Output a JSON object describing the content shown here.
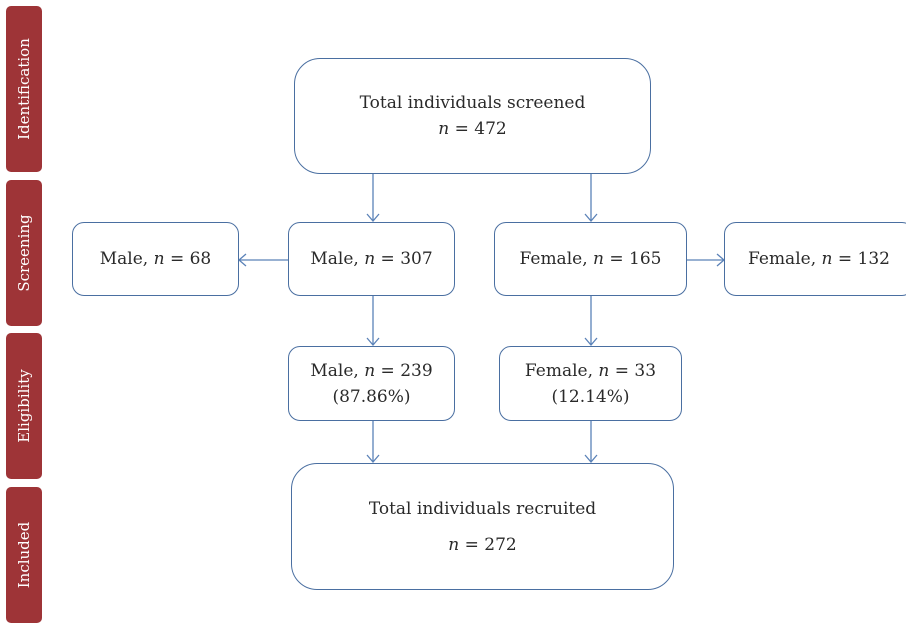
{
  "phases": {
    "identification": "Identification",
    "screening": "Screening",
    "eligibility": "Eligibility",
    "included": "Included"
  },
  "boxes": {
    "total_screened": {
      "title": "Total individuals screened",
      "n_symbol": "n",
      "value": " = 472"
    },
    "male_excluded": {
      "prefix": "Male, ",
      "n_symbol": "n",
      "value": " = 68"
    },
    "male_screened": {
      "prefix": "Male, ",
      "n_symbol": "n",
      "value": " = 307"
    },
    "female_screened": {
      "prefix": "Female, ",
      "n_symbol": "n",
      "value": " = 165"
    },
    "female_excluded": {
      "prefix": "Female, ",
      "n_symbol": "n",
      "value": " = 132"
    },
    "male_eligible": {
      "prefix": "Male, ",
      "n_symbol": "n",
      "value": " = 239",
      "percent": "(87.86%)"
    },
    "female_eligible": {
      "prefix": "Female, ",
      "n_symbol": "n",
      "value": " = 33",
      "percent": "(12.14%)"
    },
    "total_recruited": {
      "title": "Total individuals recruited",
      "n_symbol": "n",
      "value": " = 272"
    }
  },
  "colors": {
    "phase_bg": "#9e3437",
    "box_border": "#4a6fa1",
    "arrow": "#5b82b8"
  }
}
